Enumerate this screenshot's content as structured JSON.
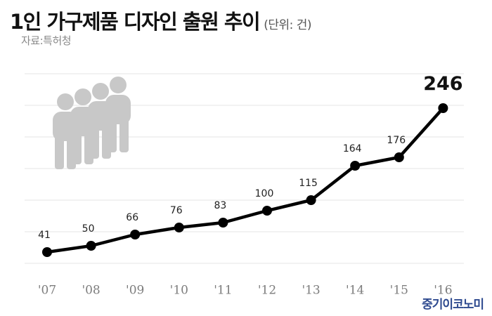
{
  "header": {
    "title": "1인 가구제품 디자인 출원 추이",
    "unit": "(단위: 건)",
    "source": "자료:특허청"
  },
  "credit": "중기이코노미",
  "colors": {
    "line": "#000000",
    "grid": "#e4e4e4",
    "icon": "#c8c8c8",
    "credit": "#2e4a8f"
  },
  "icon_name": "people-group-icon",
  "chart_data": {
    "type": "line",
    "categories": [
      "'07",
      "'08",
      "'09",
      "'10",
      "'11",
      "'12",
      "'13",
      "'14",
      "'15",
      "'16"
    ],
    "values": [
      41,
      50,
      66,
      76,
      83,
      100,
      115,
      164,
      176,
      246
    ],
    "value_labels": [
      "41",
      "50",
      "66",
      "76",
      "83",
      "100",
      "115",
      "164",
      "176",
      "246"
    ],
    "highlight_last": true,
    "ylim": [
      0,
      280
    ],
    "grid": true,
    "xlabel": "",
    "ylabel": ""
  }
}
